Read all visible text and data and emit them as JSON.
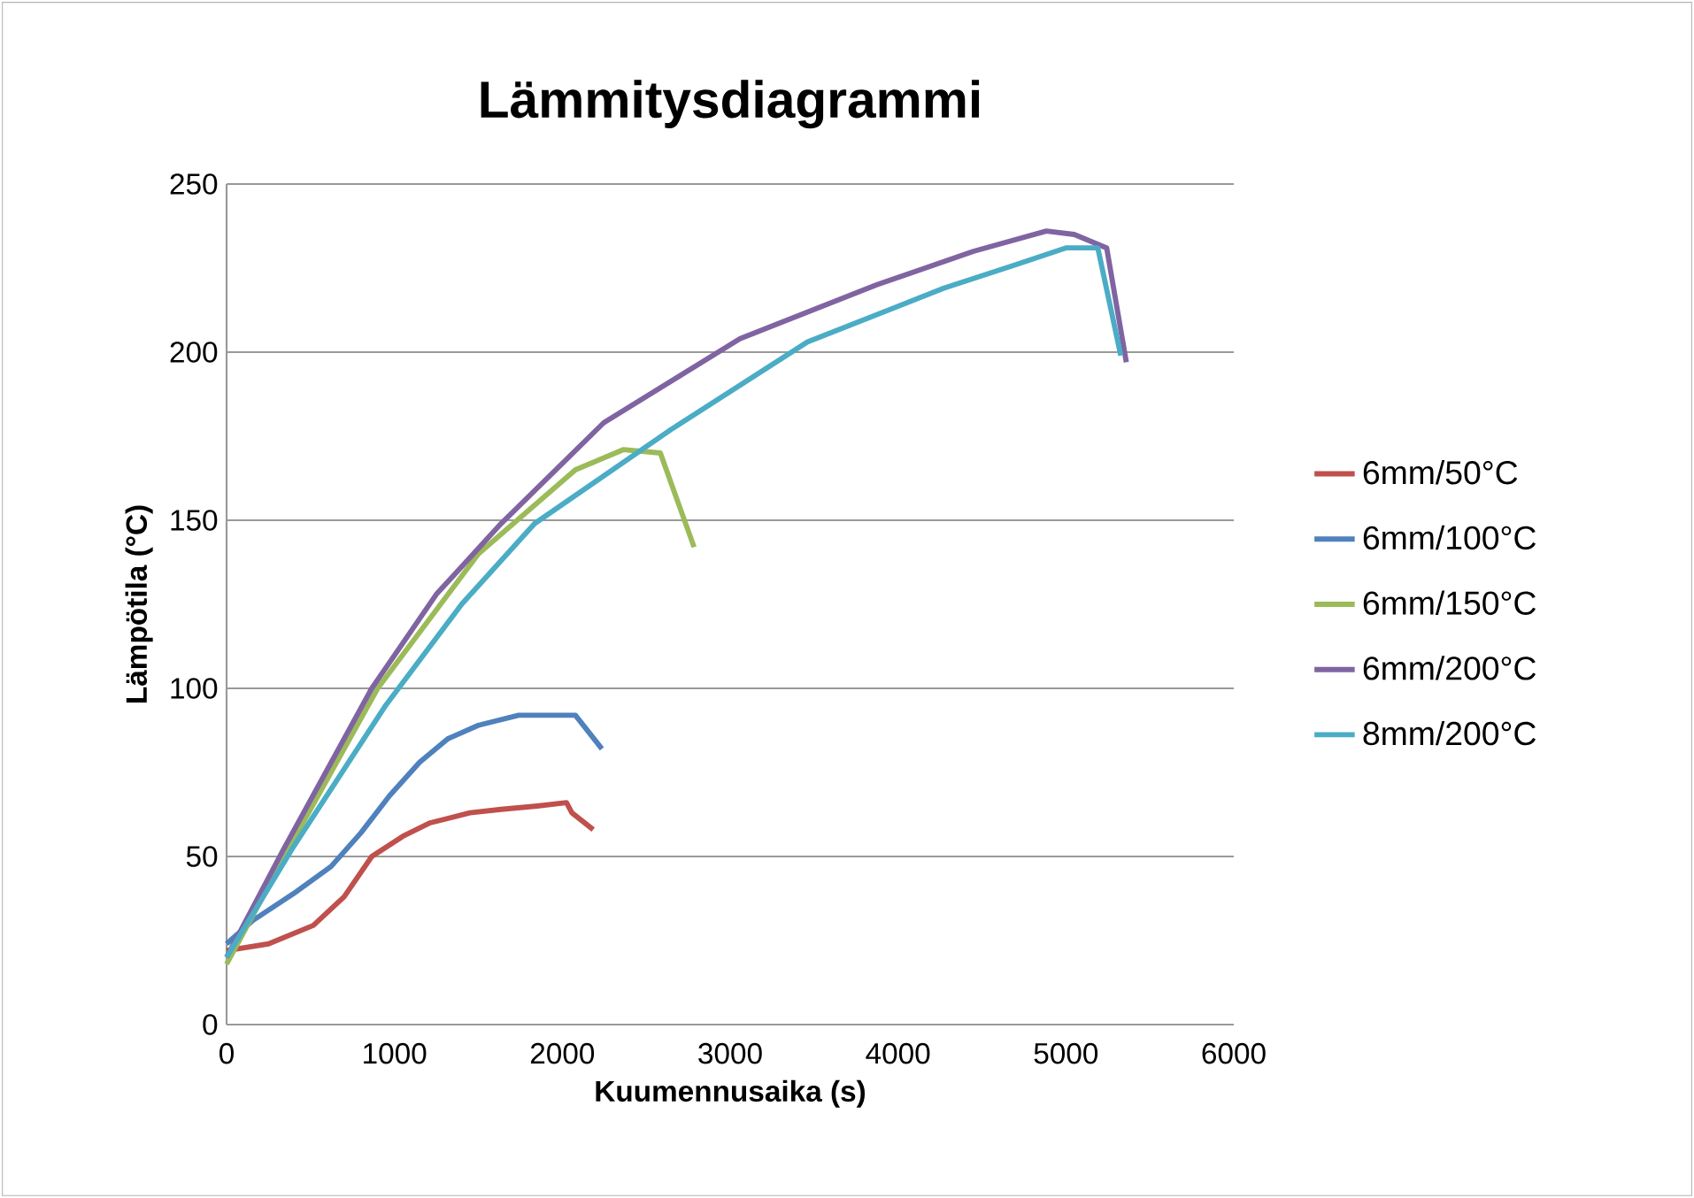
{
  "chart_data": {
    "type": "line",
    "title": "Lämmitysdiagrammi",
    "xlabel": "Kuumennusaika (s)",
    "ylabel": "Lämpötila (°C)",
    "xlim": [
      0,
      6000
    ],
    "xticks": [
      0,
      1000,
      2000,
      3000,
      4000,
      5000,
      6000
    ],
    "ylim": [
      0,
      250
    ],
    "yticks": [
      0,
      50,
      100,
      150,
      200,
      250
    ],
    "grid": "y",
    "legend": "right",
    "marker": "none",
    "line_style": "solid",
    "series": [
      {
        "name": "6mm/50°C",
        "color": "#c0504d",
        "x": [
          0,
          250,
          517,
          700,
          865,
          1050,
          1213,
          1450,
          1635,
          1850,
          2025,
          2057,
          2184
        ],
        "values": [
          22,
          24,
          29.5,
          38,
          50,
          56,
          60,
          63,
          64,
          65,
          66,
          63,
          58
        ]
      },
      {
        "name": "6mm/100°C",
        "color": "#4f81bd",
        "x": [
          0,
          158,
          400,
          622,
          800,
          970,
          1150,
          1318,
          1500,
          1740,
          1900,
          2078,
          2236
        ],
        "values": [
          24,
          31,
          39,
          47,
          57,
          68,
          78,
          85,
          89,
          92,
          92,
          92,
          82
        ]
      },
      {
        "name": "6mm/150°C",
        "color": "#9bbb59",
        "x": [
          0,
          400,
          900,
          1500,
          2078,
          2363,
          2584,
          2785
        ],
        "values": [
          18,
          55,
          100,
          140,
          165,
          171,
          170,
          142
        ]
      },
      {
        "name": "6mm/200°C",
        "color": "#8064a2",
        "x": [
          0,
          338,
          865,
          1250,
          1635,
          2247,
          3059,
          3871,
          4450,
          4884,
          5050,
          5243,
          5360
        ],
        "values": [
          20,
          52,
          100,
          128,
          149,
          179,
          204,
          220,
          230,
          236,
          235,
          231,
          197
        ]
      },
      {
        "name": "8mm/200°C",
        "color": "#4bacc6",
        "x": [
          0,
          400,
          949,
          1400,
          1835,
          2648,
          3460,
          4272,
          4700,
          5000,
          5190,
          5327
        ],
        "values": [
          20,
          53,
          95,
          125,
          149,
          177,
          203,
          219,
          226,
          231,
          231,
          199
        ]
      }
    ]
  }
}
